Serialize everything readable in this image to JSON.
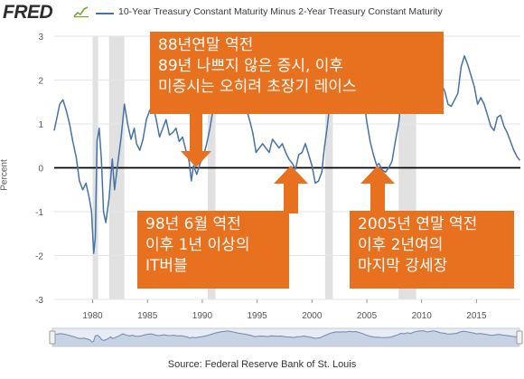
{
  "header": {
    "logo_text": "FRED",
    "series_title": "10-Year Treasury Constant Maturity Minus 2-Year Treasury Constant Maturity",
    "series_color": "#4572a7"
  },
  "footer": {
    "source": "Source: Federal Reserve Bank of St. Louis"
  },
  "callouts": {
    "c1988": {
      "lines": [
        "88년연말 역전",
        "89년 나쁘지 않은 증시, 이후",
        "미증시는 오히려 초장기 레이스"
      ],
      "color": "#e8711f"
    },
    "c1998": {
      "lines": [
        "98년 6월 역전",
        "이후 1년 이상의",
        "IT버블"
      ],
      "color": "#e8711f"
    },
    "c2005": {
      "lines": [
        "2005년 연말 역전",
        "이후 2년여의",
        "마지막 강세장"
      ],
      "color": "#e8711f"
    }
  },
  "chart_data": {
    "type": "line",
    "title": "10-Year Treasury Constant Maturity Minus 2-Year Treasury Constant Maturity",
    "xlabel": "",
    "ylabel": "Percent",
    "xlim": [
      1976.5,
      2019.0
    ],
    "ylim": [
      -3,
      3
    ],
    "x_ticks": [
      "1980",
      "1985",
      "1990",
      "1995",
      "2000",
      "2005",
      "2010",
      "2015"
    ],
    "y_ticks": [
      "-3",
      "-2",
      "-1",
      "0",
      "1",
      "2",
      "3"
    ],
    "grid": true,
    "zero_line": true,
    "recessions": [
      [
        1980.0,
        1980.5
      ],
      [
        1981.5,
        1982.9
      ],
      [
        1990.5,
        1991.2
      ],
      [
        2001.2,
        2001.9
      ],
      [
        2007.9,
        2009.5
      ]
    ],
    "series": [
      {
        "name": "10-Year Treasury Constant Maturity Minus 2-Year Treasury Constant Maturity",
        "color": "#4572a7",
        "points": [
          [
            1976.5,
            0.85
          ],
          [
            1976.8,
            1.2
          ],
          [
            1977.0,
            1.45
          ],
          [
            1977.3,
            1.55
          ],
          [
            1977.6,
            1.3
          ],
          [
            1977.9,
            1.0
          ],
          [
            1978.2,
            0.6
          ],
          [
            1978.5,
            0.25
          ],
          [
            1978.8,
            -0.3
          ],
          [
            1979.1,
            -0.5
          ],
          [
            1979.4,
            -0.35
          ],
          [
            1979.7,
            -0.7
          ],
          [
            1979.9,
            -1.0
          ],
          [
            1980.1,
            -1.95
          ],
          [
            1980.25,
            -1.6
          ],
          [
            1980.4,
            0.6
          ],
          [
            1980.6,
            0.9
          ],
          [
            1980.8,
            0.2
          ],
          [
            1981.0,
            -1.0
          ],
          [
            1981.2,
            -1.25
          ],
          [
            1981.5,
            -0.7
          ],
          [
            1981.8,
            0.2
          ],
          [
            1982.0,
            -0.5
          ],
          [
            1982.3,
            0.1
          ],
          [
            1982.6,
            0.7
          ],
          [
            1982.9,
            1.45
          ],
          [
            1983.2,
            1.0
          ],
          [
            1983.5,
            0.65
          ],
          [
            1983.8,
            0.9
          ],
          [
            1984.0,
            0.55
          ],
          [
            1984.3,
            0.4
          ],
          [
            1984.6,
            0.65
          ],
          [
            1984.9,
            1.1
          ],
          [
            1985.2,
            1.3
          ],
          [
            1985.5,
            1.45
          ],
          [
            1985.8,
            1.1
          ],
          [
            1986.1,
            0.7
          ],
          [
            1986.4,
            0.9
          ],
          [
            1986.7,
            1.1
          ],
          [
            1987.0,
            0.75
          ],
          [
            1987.3,
            0.8
          ],
          [
            1987.6,
            0.9
          ],
          [
            1987.9,
            0.6
          ],
          [
            1988.2,
            0.7
          ],
          [
            1988.5,
            0.4
          ],
          [
            1988.8,
            0.15
          ],
          [
            1989.0,
            -0.3
          ],
          [
            1989.2,
            0.05
          ],
          [
            1989.5,
            -0.15
          ],
          [
            1989.8,
            0.1
          ],
          [
            1990.1,
            0.25
          ],
          [
            1990.4,
            0.55
          ],
          [
            1990.7,
            0.9
          ],
          [
            1991.0,
            1.35
          ],
          [
            1991.3,
            1.8
          ],
          [
            1991.6,
            2.1
          ],
          [
            1991.9,
            2.35
          ],
          [
            1992.2,
            2.55
          ],
          [
            1992.5,
            2.65
          ],
          [
            1992.8,
            2.4
          ],
          [
            1993.1,
            2.1
          ],
          [
            1993.4,
            1.8
          ],
          [
            1993.7,
            1.55
          ],
          [
            1994.0,
            1.35
          ],
          [
            1994.3,
            1.1
          ],
          [
            1994.6,
            0.8
          ],
          [
            1994.9,
            0.35
          ],
          [
            1995.2,
            0.45
          ],
          [
            1995.5,
            0.55
          ],
          [
            1995.8,
            0.45
          ],
          [
            1996.1,
            0.35
          ],
          [
            1996.4,
            0.65
          ],
          [
            1996.7,
            0.55
          ],
          [
            1997.0,
            0.45
          ],
          [
            1997.3,
            0.55
          ],
          [
            1997.6,
            0.35
          ],
          [
            1997.9,
            0.2
          ],
          [
            1998.2,
            0.1
          ],
          [
            1998.5,
            -0.03
          ],
          [
            1998.8,
            0.3
          ],
          [
            1999.1,
            0.35
          ],
          [
            1999.4,
            0.55
          ],
          [
            1999.7,
            0.3
          ],
          [
            2000.0,
            0.05
          ],
          [
            2000.3,
            -0.35
          ],
          [
            2000.6,
            -0.3
          ],
          [
            2000.9,
            -0.1
          ],
          [
            2001.1,
            0.4
          ],
          [
            2001.4,
            0.95
          ],
          [
            2001.7,
            1.6
          ],
          [
            2002.0,
            2.0
          ],
          [
            2002.3,
            2.3
          ],
          [
            2002.6,
            2.2
          ],
          [
            2002.9,
            2.35
          ],
          [
            2003.2,
            2.2
          ],
          [
            2003.5,
            2.55
          ],
          [
            2003.8,
            2.35
          ],
          [
            2004.1,
            2.45
          ],
          [
            2004.4,
            2.05
          ],
          [
            2004.7,
            1.6
          ],
          [
            2005.0,
            1.05
          ],
          [
            2005.3,
            0.6
          ],
          [
            2005.6,
            0.3
          ],
          [
            2005.9,
            0.05
          ],
          [
            2006.1,
            0.1
          ],
          [
            2006.4,
            -0.05
          ],
          [
            2006.7,
            -0.1
          ],
          [
            2007.0,
            0.0
          ],
          [
            2007.3,
            0.15
          ],
          [
            2007.6,
            0.6
          ],
          [
            2007.9,
            1.0
          ],
          [
            2008.2,
            1.7
          ],
          [
            2008.5,
            1.5
          ],
          [
            2008.8,
            1.9
          ],
          [
            2009.1,
            1.65
          ],
          [
            2009.4,
            2.2
          ],
          [
            2009.7,
            2.55
          ],
          [
            2010.0,
            2.75
          ],
          [
            2010.3,
            2.7
          ],
          [
            2010.6,
            2.25
          ],
          [
            2010.9,
            2.55
          ],
          [
            2011.2,
            2.75
          ],
          [
            2011.5,
            2.4
          ],
          [
            2011.8,
            1.9
          ],
          [
            2012.1,
            1.75
          ],
          [
            2012.4,
            1.45
          ],
          [
            2012.7,
            1.4
          ],
          [
            2013.0,
            1.55
          ],
          [
            2013.3,
            1.7
          ],
          [
            2013.6,
            2.3
          ],
          [
            2013.9,
            2.55
          ],
          [
            2014.2,
            2.35
          ],
          [
            2014.5,
            2.1
          ],
          [
            2014.8,
            1.85
          ],
          [
            2015.1,
            1.45
          ],
          [
            2015.4,
            1.6
          ],
          [
            2015.7,
            1.45
          ],
          [
            2016.0,
            1.2
          ],
          [
            2016.3,
            0.95
          ],
          [
            2016.6,
            0.85
          ],
          [
            2016.9,
            1.15
          ],
          [
            2017.2,
            1.2
          ],
          [
            2017.5,
            0.95
          ],
          [
            2017.8,
            0.8
          ],
          [
            2018.1,
            0.6
          ],
          [
            2018.4,
            0.4
          ],
          [
            2018.7,
            0.25
          ],
          [
            2018.95,
            0.17
          ]
        ]
      }
    ]
  }
}
